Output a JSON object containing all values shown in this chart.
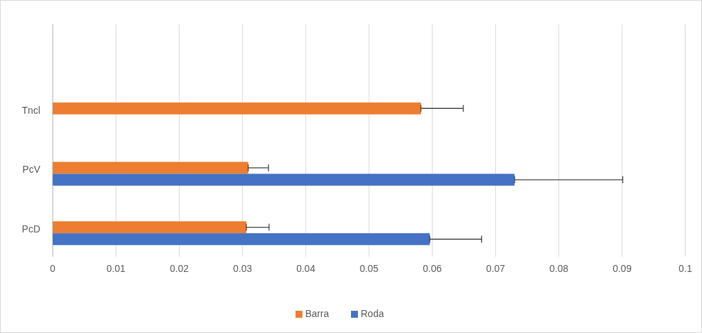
{
  "chart_data": {
    "type": "bar",
    "orientation": "horizontal",
    "categories": [
      "Tncl",
      "PcV",
      "PcD"
    ],
    "series": [
      {
        "name": "Barra",
        "color": "#ed7d31",
        "values": [
          0.0582,
          0.0309,
          0.0306
        ],
        "errors": [
          [
            0.0582,
            0.0649
          ],
          [
            0.0309,
            0.0341
          ],
          [
            0.0306,
            0.0342
          ]
        ]
      },
      {
        "name": "Roda",
        "color": "#4472c4",
        "values": [
          null,
          0.073,
          0.0596
        ],
        "errors": [
          null,
          [
            0.073,
            0.0901
          ],
          [
            0.0596,
            0.0678
          ]
        ]
      }
    ],
    "xlim": [
      0,
      0.1
    ],
    "xticks": [
      0,
      0.01,
      0.02,
      0.03,
      0.04,
      0.05,
      0.06,
      0.07,
      0.08,
      0.09,
      0.1
    ],
    "grid": "x",
    "legend": "bottom"
  }
}
